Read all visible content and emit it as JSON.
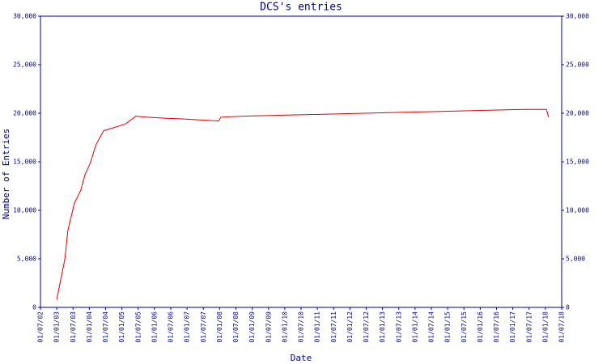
{
  "chart_data": {
    "type": "line",
    "title": "DCS's entries",
    "x_label": "Date",
    "y_label": "Number of Entries",
    "x": [
      2003.0,
      2003.25,
      2003.34,
      2003.54,
      2003.74,
      2003.87,
      2004.02,
      2004.21,
      2004.44,
      2004.74,
      2005.11,
      2005.43,
      2005.73,
      2006.23,
      2006.97,
      2007.97,
      2008.04,
      2008.71,
      2009.95,
      2011.2,
      2012.44,
      2013.68,
      2014.92,
      2016.16,
      2017.41,
      2018.03,
      2018.1
    ],
    "series": [
      {
        "color": "#dd0000",
        "values": [
          800,
          5000,
          7900,
          10700,
          12100,
          13700,
          14800,
          16800,
          18200,
          18500,
          18900,
          19700,
          19600,
          19500,
          19400,
          19200,
          19600,
          19700,
          19800,
          19900,
          20000,
          20100,
          20200,
          20300,
          20400,
          20400,
          19600
        ]
      }
    ],
    "xlim": [
      2002.5,
      2018.5
    ],
    "xticks": [
      {
        "value": 2002.5,
        "label": "01/07/02"
      },
      {
        "value": 2003,
        "label": "01/01/03"
      },
      {
        "value": 2003.5,
        "label": "01/07/03"
      },
      {
        "value": 2004,
        "label": "01/01/04"
      },
      {
        "value": 2004.5,
        "label": "01/07/04"
      },
      {
        "value": 2005,
        "label": "01/01/05"
      },
      {
        "value": 2005.5,
        "label": "01/07/05"
      },
      {
        "value": 2006,
        "label": "01/01/06"
      },
      {
        "value": 2006.5,
        "label": "01/07/06"
      },
      {
        "value": 2007,
        "label": "01/01/07"
      },
      {
        "value": 2007.5,
        "label": "01/07/07"
      },
      {
        "value": 2008,
        "label": "01/01/08"
      },
      {
        "value": 2008.5,
        "label": "01/07/08"
      },
      {
        "value": 2009,
        "label": "01/01/09"
      },
      {
        "value": 2009.5,
        "label": "01/07/09"
      },
      {
        "value": 2010,
        "label": "01/01/10"
      },
      {
        "value": 2010.5,
        "label": "01/07/10"
      },
      {
        "value": 2011,
        "label": "01/01/11"
      },
      {
        "value": 2011.5,
        "label": "01/07/11"
      },
      {
        "value": 2012,
        "label": "01/01/12"
      },
      {
        "value": 2012.5,
        "label": "01/07/12"
      },
      {
        "value": 2013,
        "label": "01/01/13"
      },
      {
        "value": 2013.5,
        "label": "01/07/13"
      },
      {
        "value": 2014,
        "label": "01/01/14"
      },
      {
        "value": 2014.5,
        "label": "01/07/14"
      },
      {
        "value": 2015,
        "label": "01/01/15"
      },
      {
        "value": 2015.5,
        "label": "01/07/15"
      },
      {
        "value": 2016,
        "label": "01/01/16"
      },
      {
        "value": 2016.5,
        "label": "01/07/16"
      },
      {
        "value": 2017,
        "label": "01/01/17"
      },
      {
        "value": 2017.5,
        "label": "01/07/17"
      },
      {
        "value": 2018,
        "label": "01/01/18"
      },
      {
        "value": 2018.5,
        "label": "01/07/18"
      }
    ],
    "ylim": [
      0,
      30000
    ],
    "yticks": [
      0,
      {
        "value": 5000,
        "label": "5,000"
      },
      {
        "value": 10000,
        "label": "10,000"
      },
      {
        "value": 15000,
        "label": "15,000"
      },
      {
        "value": 20000,
        "label": "20,000"
      },
      {
        "value": 25000,
        "label": "25,000"
      },
      {
        "value": 30000,
        "label": "30,000"
      }
    ],
    "grid": false
  }
}
